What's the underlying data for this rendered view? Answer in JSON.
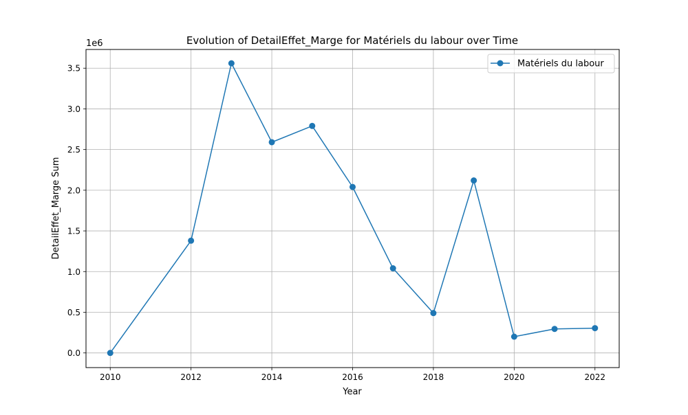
{
  "chart_data": {
    "type": "line",
    "title": "Evolution of DetailEffet_Marge for Matériels du labour over Time",
    "xlabel": "Year",
    "ylabel": "DetailEffet_Marge Sum",
    "y_scale_label": "1e6",
    "x_ticks": [
      "2010",
      "2012",
      "2014",
      "2016",
      "2018",
      "2020",
      "2022"
    ],
    "y_ticks": [
      "0.0",
      "0.5",
      "1.0",
      "1.5",
      "2.0",
      "2.5",
      "3.0",
      "3.5"
    ],
    "xlim": [
      2009.4,
      2022.6
    ],
    "ylim": [
      -180000,
      3730000
    ],
    "grid": true,
    "legend_position": "top-right",
    "series": [
      {
        "name": "Matériels du labour",
        "color": "#1f77b4",
        "marker": "circle",
        "x": [
          2010,
          2012,
          2013,
          2014,
          2015,
          2016,
          2017,
          2018,
          2019,
          2020,
          2021,
          2022
        ],
        "y": [
          0,
          1380000,
          3560000,
          2590000,
          2790000,
          2040000,
          1040000,
          490000,
          2120000,
          200000,
          295000,
          305000
        ]
      }
    ]
  }
}
